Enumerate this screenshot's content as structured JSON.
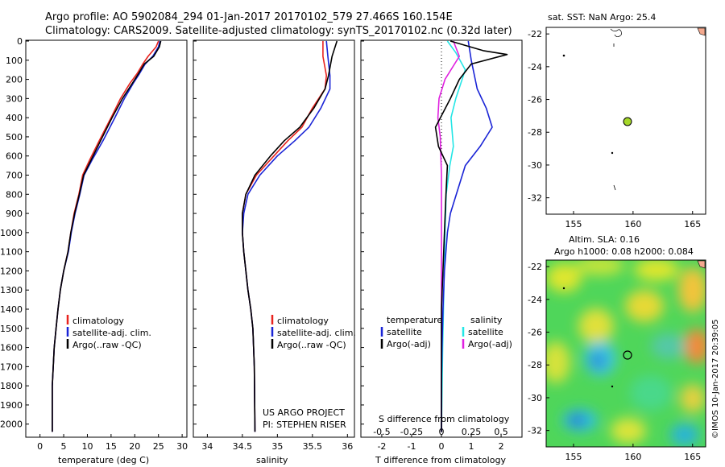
{
  "header": {
    "line1": "Argo profile: AO 5902084_294 01-Jan-2017 20170102_579 27.466S 160.154E",
    "line2": "Climatology: CARS2009. Satellite-adjusted climatology: synTS_20170102.nc (0.32d later)"
  },
  "colors": {
    "climatology": "#e8231e",
    "satellite": "#1a24d6",
    "argo": "#000000",
    "salinity_sat": "#23e6e6",
    "salinity_argo": "#e021e0",
    "marker": "#a6d82a"
  },
  "depth_axis": {
    "ticks": [
      "0",
      "100",
      "200",
      "300",
      "400",
      "500",
      "600",
      "700",
      "800",
      "900",
      "1000",
      "1100",
      "1200",
      "1300",
      "1400",
      "1500",
      "1600",
      "1700",
      "1800",
      "1900",
      "2000"
    ],
    "range": [
      0,
      2060
    ]
  },
  "panel_temperature": {
    "xlabel": "temperature (deg C)",
    "xticks": [
      "0",
      "5",
      "10",
      "15",
      "20",
      "25",
      "30"
    ],
    "legend": [
      "climatology",
      "satellite-adj. clim.",
      "Argo(..raw -QC)"
    ]
  },
  "panel_salinity": {
    "xlabel": "salinity",
    "xticks": [
      "34",
      "34.5",
      "35",
      "35.5",
      "36"
    ],
    "legend": [
      "climatology",
      "satellite-adj. clim.",
      "Argo(..raw -QC)"
    ],
    "credit1": "US ARGO PROJECT",
    "credit2": "PI: STEPHEN RISER"
  },
  "panel_difference": {
    "xlabel": "T difference from climatology",
    "s_label": "S difference from climatology",
    "t_ticks": [
      "-2",
      "-1",
      "0",
      "1",
      "2"
    ],
    "s_ticks": [
      "-0.5",
      "-0.25",
      "0",
      "0.25",
      "0.5"
    ],
    "legend_temp_title": "temperature",
    "legend_sal_title": "salinity",
    "legend_temp": [
      "satellite",
      "Argo(-adj)"
    ],
    "legend_sal": [
      "satellite",
      "Argo(-adj)"
    ]
  },
  "map_sst": {
    "title": "sat. SST: NaN Argo: 25.4",
    "yticks": [
      "-22",
      "-24",
      "-26",
      "-28",
      "-30",
      "-32"
    ],
    "xticks": [
      "155",
      "160",
      "165"
    ]
  },
  "map_sla": {
    "title1": "Altim. SLA: 0.16",
    "title2": "Argo h1000: 0.08 h2000: 0.084",
    "yticks": [
      "-22",
      "-24",
      "-26",
      "-28",
      "-30",
      "-32"
    ],
    "xticks": [
      "155",
      "160",
      "165"
    ]
  },
  "watermark": "©IMOS 10-Jan-2017 20:39:05",
  "chart_data": [
    {
      "type": "line",
      "xlabel": "temperature (deg C)",
      "ylabel": "",
      "xlim": [
        -3,
        31
      ],
      "ylim": [
        2060,
        0
      ],
      "series": [
        {
          "name": "climatology",
          "x": [
            25.0,
            24.5,
            22.8,
            21.7,
            20.5,
            19.0,
            17.0,
            15.0,
            12.5,
            10.5,
            9.0,
            8.2,
            7.2,
            6.5,
            5.9,
            5.0,
            4.3,
            3.8,
            3.4,
            3.0,
            2.8,
            2.6,
            2.6
          ],
          "y": [
            0,
            30,
            80,
            120,
            170,
            220,
            300,
            400,
            520,
            620,
            700,
            800,
            900,
            1000,
            1100,
            1200,
            1300,
            1400,
            1500,
            1600,
            1700,
            1800,
            2040
          ]
        },
        {
          "name": "satellite-adj. clim.",
          "x": [
            25.3,
            25.0,
            23.8,
            22.2,
            21.0,
            19.7,
            17.8,
            15.8,
            13.3,
            11.0,
            9.3,
            8.4,
            7.4,
            6.6,
            6.0,
            5.0,
            4.3,
            3.8,
            3.4,
            3.0,
            2.8,
            2.6,
            2.6
          ],
          "y": [
            0,
            30,
            80,
            120,
            170,
            220,
            300,
            400,
            520,
            620,
            700,
            800,
            900,
            1000,
            1100,
            1200,
            1300,
            1400,
            1500,
            1600,
            1700,
            1800,
            2040
          ]
        },
        {
          "name": "Argo(..raw -QC)",
          "x": [
            25.5,
            25.2,
            24.0,
            22.0,
            20.8,
            19.5,
            17.4,
            15.2,
            12.8,
            10.8,
            9.2,
            8.3,
            7.3,
            6.5,
            5.9,
            5.0,
            4.3,
            3.8,
            3.4,
            3.0,
            2.8,
            2.6,
            2.6
          ],
          "y": [
            0,
            30,
            80,
            120,
            170,
            220,
            300,
            400,
            520,
            620,
            700,
            800,
            900,
            1000,
            1100,
            1200,
            1300,
            1400,
            1500,
            1600,
            1700,
            1800,
            2040
          ]
        }
      ]
    },
    {
      "type": "line",
      "xlabel": "salinity",
      "ylabel": "",
      "xlim": [
        33.8,
        36.1
      ],
      "ylim": [
        2060,
        0
      ],
      "series": [
        {
          "name": "climatology",
          "x": [
            35.65,
            35.65,
            35.7,
            35.68,
            35.5,
            35.35,
            35.15,
            34.95,
            34.7,
            34.55,
            34.5,
            34.5,
            34.52,
            34.55,
            34.58,
            34.62,
            34.65,
            34.67,
            34.68
          ],
          "y": [
            0,
            80,
            180,
            250,
            350,
            450,
            520,
            600,
            700,
            800,
            900,
            1000,
            1100,
            1200,
            1300,
            1400,
            1500,
            1700,
            2040
          ]
        },
        {
          "name": "satellite-adj. clim.",
          "x": [
            35.7,
            35.72,
            35.75,
            35.75,
            35.62,
            35.45,
            35.25,
            35.0,
            34.75,
            34.58,
            34.52,
            34.5,
            34.52,
            34.55,
            34.58,
            34.62,
            34.65,
            34.67,
            34.68
          ],
          "y": [
            0,
            80,
            180,
            250,
            350,
            450,
            520,
            600,
            700,
            800,
            900,
            1000,
            1100,
            1200,
            1300,
            1400,
            1500,
            1700,
            2040
          ]
        },
        {
          "name": "Argo(..raw -QC)",
          "x": [
            35.85,
            35.78,
            35.73,
            35.68,
            35.52,
            35.32,
            35.1,
            34.9,
            34.68,
            34.55,
            34.5,
            34.5,
            34.52,
            34.55,
            34.58,
            34.62,
            34.65,
            34.67,
            34.68
          ],
          "y": [
            0,
            80,
            180,
            250,
            350,
            450,
            520,
            600,
            700,
            800,
            900,
            1000,
            1100,
            1200,
            1300,
            1400,
            1500,
            1700,
            2040
          ]
        }
      ]
    },
    {
      "type": "line",
      "xlabel": "T difference from climatology",
      "ylabel": "",
      "xlim": [
        -2.7,
        2.7
      ],
      "ylim": [
        2060,
        0
      ],
      "series": [
        {
          "name": "satellite",
          "x": [
            0.9,
            1.0,
            1.2,
            1.5,
            1.7,
            1.3,
            0.8,
            0.5,
            0.3,
            0.2,
            0.1,
            0.05,
            0.02,
            0.0,
            0.0
          ],
          "y": [
            0,
            100,
            250,
            350,
            450,
            550,
            650,
            800,
            900,
            1000,
            1200,
            1400,
            1600,
            1800,
            2040
          ]
        },
        {
          "name": "Argo(-adj)",
          "x": [
            0.3,
            1.4,
            2.2,
            1.0,
            0.6,
            0.3,
            -0.2,
            -0.1,
            0.2,
            0.15,
            0.1,
            0.05,
            0.0,
            0.0,
            0.0
          ],
          "y": [
            0,
            50,
            70,
            120,
            200,
            300,
            450,
            550,
            650,
            800,
            1000,
            1200,
            1400,
            1700,
            2040
          ]
        }
      ]
    },
    {
      "type": "line",
      "xlabel": "S difference from climatology",
      "ylabel": "",
      "xlim": [
        -0.675,
        0.675
      ],
      "ylim": [
        2060,
        0
      ],
      "series": [
        {
          "name": "satellite",
          "x": [
            0.05,
            0.12,
            0.2,
            0.12,
            0.08,
            0.1,
            0.07,
            0.04,
            0.03,
            0.02,
            0.01,
            0.0
          ],
          "y": [
            0,
            60,
            150,
            300,
            400,
            550,
            650,
            800,
            1000,
            1300,
            1600,
            2040
          ]
        },
        {
          "name": "Argo(-adj)",
          "x": [
            0.1,
            0.15,
            0.03,
            -0.02,
            -0.03,
            -0.01,
            0.0,
            0.0,
            0.0,
            0.0
          ],
          "y": [
            0,
            80,
            200,
            300,
            400,
            500,
            700,
            1000,
            1500,
            2040
          ]
        }
      ]
    }
  ]
}
